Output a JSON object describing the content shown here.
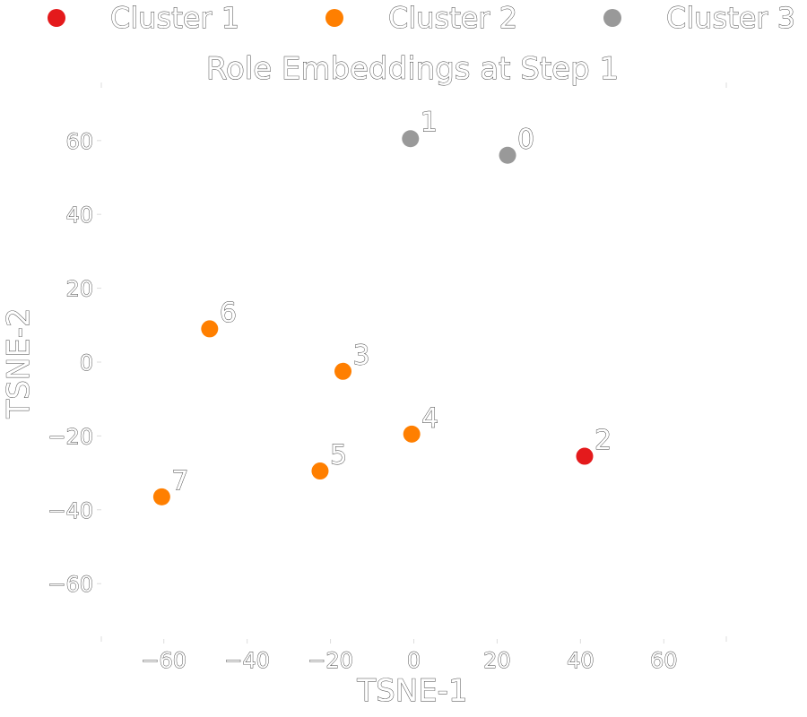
{
  "chart_data": {
    "type": "scatter",
    "title": "Role Embeddings at Step 1",
    "xlabel": "TSNE-1",
    "ylabel": "TSNE-2",
    "xlim": [
      -75,
      75
    ],
    "ylim": [
      -75,
      75
    ],
    "xticks": [
      -60,
      -40,
      -20,
      0,
      20,
      40,
      60
    ],
    "yticks": [
      -60,
      -40,
      -20,
      0,
      20,
      40,
      60
    ],
    "xtick_labels": [
      "−60",
      "−40",
      "−20",
      "0",
      "20",
      "40",
      "60"
    ],
    "ytick_labels": [
      "−60",
      "−40",
      "−20",
      "0",
      "20",
      "40",
      "60"
    ],
    "grid": false,
    "legend": {
      "position": "top",
      "entries": [
        {
          "name": "Cluster 1",
          "color": "#e41a1c"
        },
        {
          "name": "Cluster 2",
          "color": "#ff7f00"
        },
        {
          "name": "Cluster 3",
          "color": "#999999"
        }
      ]
    },
    "points": [
      {
        "label": "0",
        "x": 22.5,
        "y": 56,
        "cluster": 3
      },
      {
        "label": "1",
        "x": -0.8,
        "y": 60.5,
        "cluster": 3
      },
      {
        "label": "2",
        "x": 41,
        "y": -25.5,
        "cluster": 1
      },
      {
        "label": "3",
        "x": -17,
        "y": -2.5,
        "cluster": 2
      },
      {
        "label": "4",
        "x": -0.5,
        "y": -19.5,
        "cluster": 2
      },
      {
        "label": "5",
        "x": -22.5,
        "y": -29.5,
        "cluster": 2
      },
      {
        "label": "6",
        "x": -49,
        "y": 9,
        "cluster": 2
      },
      {
        "label": "7",
        "x": -60.5,
        "y": -36.5,
        "cluster": 2
      }
    ]
  }
}
